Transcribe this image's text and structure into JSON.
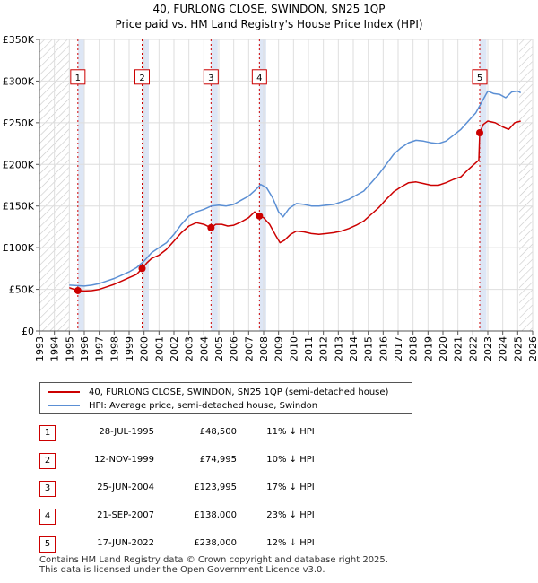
{
  "chart_data": {
    "type": "line",
    "title": "40, FURLONG CLOSE, SWINDON, SN25 1QP",
    "subtitle": "Price paid vs. HM Land Registry's House Price Index (HPI)",
    "xlim": [
      1993,
      2026
    ],
    "ylim": [
      0,
      350000
    ],
    "y_ticks": [
      0,
      50000,
      100000,
      150000,
      200000,
      250000,
      300000,
      350000
    ],
    "y_tick_labels": [
      "£0",
      "£50K",
      "£100K",
      "£150K",
      "£200K",
      "£250K",
      "£300K",
      "£350K"
    ],
    "x_ticks": [
      1993,
      1994,
      1995,
      1996,
      1997,
      1998,
      1999,
      2000,
      2001,
      2002,
      2003,
      2004,
      2005,
      2006,
      2007,
      2008,
      2009,
      2010,
      2011,
      2012,
      2013,
      2014,
      2015,
      2016,
      2017,
      2018,
      2019,
      2020,
      2021,
      2022,
      2023,
      2024,
      2025,
      2026
    ],
    "x_tick_labels": [
      "1993",
      "1994",
      "1995",
      "1996",
      "1997",
      "1998",
      "1999",
      "2000",
      "2001",
      "2002",
      "2003",
      "2004",
      "2005",
      "2006",
      "2007",
      "2008",
      "2009",
      "2010",
      "2011",
      "2012",
      "2013",
      "2014",
      "2015",
      "2016",
      "2017",
      "2018",
      "2019",
      "2020",
      "2021",
      "2022",
      "2023",
      "2024",
      "2025",
      "2026"
    ],
    "hatched_before": 1995.0,
    "hatched_after": 2025.1,
    "series": [
      {
        "name": "40, FURLONG CLOSE, SWINDON, SN25 1QP (semi-detached house)",
        "color": "#cc0000",
        "points": [
          [
            1995.0,
            52000
          ],
          [
            1995.57,
            48500
          ],
          [
            1996.0,
            48000
          ],
          [
            1996.5,
            48500
          ],
          [
            1997.0,
            50000
          ],
          [
            1997.5,
            53000
          ],
          [
            1998.0,
            56000
          ],
          [
            1998.5,
            60000
          ],
          [
            1999.0,
            64000
          ],
          [
            1999.5,
            68000
          ],
          [
            1999.87,
            74995
          ],
          [
            2000.2,
            82000
          ],
          [
            2000.5,
            87000
          ],
          [
            2001.0,
            91000
          ],
          [
            2001.5,
            98000
          ],
          [
            2002.0,
            108000
          ],
          [
            2002.5,
            118000
          ],
          [
            2003.0,
            126000
          ],
          [
            2003.5,
            130000
          ],
          [
            2004.0,
            128000
          ],
          [
            2004.48,
            123995
          ],
          [
            2004.8,
            128000
          ],
          [
            2005.2,
            128000
          ],
          [
            2005.6,
            126000
          ],
          [
            2006.0,
            127000
          ],
          [
            2006.5,
            131000
          ],
          [
            2007.0,
            136000
          ],
          [
            2007.4,
            143000
          ],
          [
            2007.72,
            138000
          ],
          [
            2008.0,
            136000
          ],
          [
            2008.4,
            128000
          ],
          [
            2008.8,
            115000
          ],
          [
            2009.1,
            106000
          ],
          [
            2009.4,
            109000
          ],
          [
            2009.8,
            116000
          ],
          [
            2010.2,
            120000
          ],
          [
            2010.7,
            119000
          ],
          [
            2011.2,
            117000
          ],
          [
            2011.7,
            116000
          ],
          [
            2012.2,
            117000
          ],
          [
            2012.7,
            118000
          ],
          [
            2013.2,
            120000
          ],
          [
            2013.7,
            123000
          ],
          [
            2014.2,
            127000
          ],
          [
            2014.7,
            132000
          ],
          [
            2015.2,
            140000
          ],
          [
            2015.7,
            148000
          ],
          [
            2016.2,
            158000
          ],
          [
            2016.7,
            167000
          ],
          [
            2017.2,
            173000
          ],
          [
            2017.7,
            178000
          ],
          [
            2018.2,
            179000
          ],
          [
            2018.7,
            177000
          ],
          [
            2019.2,
            175000
          ],
          [
            2019.7,
            175000
          ],
          [
            2020.2,
            178000
          ],
          [
            2020.7,
            182000
          ],
          [
            2021.2,
            185000
          ],
          [
            2021.7,
            194000
          ],
          [
            2022.2,
            202000
          ],
          [
            2022.4,
            205000
          ],
          [
            2022.46,
            238000
          ],
          [
            2022.7,
            248000
          ],
          [
            2023.0,
            252000
          ],
          [
            2023.5,
            250000
          ],
          [
            2024.0,
            245000
          ],
          [
            2024.4,
            242000
          ],
          [
            2024.8,
            250000
          ],
          [
            2025.2,
            252000
          ]
        ]
      },
      {
        "name": "HPI: Average price, semi-detached house, Swindon",
        "color": "#5b8fd4",
        "points": [
          [
            1995.0,
            55000
          ],
          [
            1995.5,
            54500
          ],
          [
            1996.0,
            54000
          ],
          [
            1996.5,
            55000
          ],
          [
            1997.0,
            57000
          ],
          [
            1997.5,
            60000
          ],
          [
            1998.0,
            63000
          ],
          [
            1998.5,
            67000
          ],
          [
            1999.0,
            71000
          ],
          [
            1999.5,
            76000
          ],
          [
            2000.0,
            84000
          ],
          [
            2000.5,
            94000
          ],
          [
            2001.0,
            100000
          ],
          [
            2001.5,
            106000
          ],
          [
            2002.0,
            116000
          ],
          [
            2002.5,
            128000
          ],
          [
            2003.0,
            138000
          ],
          [
            2003.5,
            143000
          ],
          [
            2004.0,
            146000
          ],
          [
            2004.5,
            150000
          ],
          [
            2005.0,
            151000
          ],
          [
            2005.5,
            150000
          ],
          [
            2006.0,
            152000
          ],
          [
            2006.5,
            157000
          ],
          [
            2007.0,
            162000
          ],
          [
            2007.5,
            170000
          ],
          [
            2007.8,
            176000
          ],
          [
            2008.2,
            172000
          ],
          [
            2008.6,
            160000
          ],
          [
            2009.0,
            143000
          ],
          [
            2009.3,
            137000
          ],
          [
            2009.7,
            147000
          ],
          [
            2010.2,
            153000
          ],
          [
            2010.7,
            152000
          ],
          [
            2011.2,
            150000
          ],
          [
            2011.7,
            150000
          ],
          [
            2012.2,
            151000
          ],
          [
            2012.7,
            152000
          ],
          [
            2013.2,
            155000
          ],
          [
            2013.7,
            158000
          ],
          [
            2014.2,
            163000
          ],
          [
            2014.7,
            168000
          ],
          [
            2015.2,
            178000
          ],
          [
            2015.7,
            188000
          ],
          [
            2016.2,
            200000
          ],
          [
            2016.7,
            212000
          ],
          [
            2017.2,
            220000
          ],
          [
            2017.7,
            226000
          ],
          [
            2018.2,
            229000
          ],
          [
            2018.7,
            228000
          ],
          [
            2019.2,
            226000
          ],
          [
            2019.7,
            225000
          ],
          [
            2020.2,
            228000
          ],
          [
            2020.7,
            235000
          ],
          [
            2021.2,
            242000
          ],
          [
            2021.7,
            252000
          ],
          [
            2022.2,
            262000
          ],
          [
            2022.6,
            275000
          ],
          [
            2023.0,
            288000
          ],
          [
            2023.4,
            285000
          ],
          [
            2023.8,
            284000
          ],
          [
            2024.2,
            280000
          ],
          [
            2024.6,
            287000
          ],
          [
            2025.0,
            288000
          ],
          [
            2025.2,
            286000
          ]
        ]
      }
    ],
    "sales": [
      {
        "label": "1",
        "x": 1995.57,
        "y": 48500
      },
      {
        "label": "2",
        "x": 1999.87,
        "y": 74995
      },
      {
        "label": "3",
        "x": 2004.48,
        "y": 123995
      },
      {
        "label": "4",
        "x": 2007.72,
        "y": 138000
      },
      {
        "label": "5",
        "x": 2022.46,
        "y": 238000
      }
    ],
    "sale_box_y": 305000
  },
  "legend": {
    "property_label": "40, FURLONG CLOSE, SWINDON, SN25 1QP (semi-detached house)",
    "hpi_label": "HPI: Average price, semi-detached house, Swindon"
  },
  "transactions": [
    {
      "num": "1",
      "date": "28-JUL-1995",
      "price": "£48,500",
      "hpi": "11% ↓ HPI"
    },
    {
      "num": "2",
      "date": "12-NOV-1999",
      "price": "£74,995",
      "hpi": "10% ↓ HPI"
    },
    {
      "num": "3",
      "date": "25-JUN-2004",
      "price": "£123,995",
      "hpi": "17% ↓ HPI"
    },
    {
      "num": "4",
      "date": "21-SEP-2007",
      "price": "£138,000",
      "hpi": "23% ↓ HPI"
    },
    {
      "num": "5",
      "date": "17-JUN-2022",
      "price": "£238,000",
      "hpi": "12% ↓ HPI"
    }
  ],
  "footer": {
    "line1": "Contains HM Land Registry data © Crown copyright and database right 2025.",
    "line2": "This data is licensed under the Open Government Licence v3.0."
  },
  "colors": {
    "property": "#cc0000",
    "hpi": "#5b8fd4",
    "sale_box": "#cc0000",
    "band": "#dde6f5"
  }
}
